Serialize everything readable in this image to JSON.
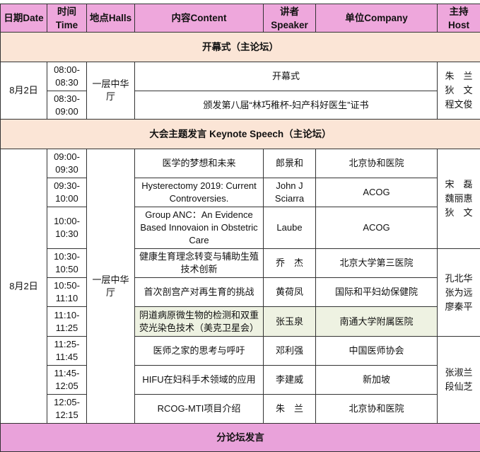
{
  "header": {
    "date": "日期Date",
    "time": "时间\nTime",
    "hall": "地点Halls",
    "content": "内容Content",
    "speaker": "讲者\nSpeaker",
    "company": "单位Company",
    "host": "主持\nHost"
  },
  "colors": {
    "header": "#eea7dc",
    "section": "#fbe5d6",
    "section_pink": "#e9a2da",
    "highlight": "#eef2e2"
  },
  "opening": {
    "title": "开幕式（主论坛）",
    "date": "8月2日",
    "hall": "一层中华厅",
    "host": "朱　兰\n狄　文\n程文俊",
    "rows": [
      {
        "time": "08:00-\n08:30",
        "content": "开幕式"
      },
      {
        "time": "08:30-\n09:00",
        "content": "颁发第八届“林巧稚杯-妇产科好医生”证书"
      }
    ]
  },
  "keynote": {
    "title": "大会主题发言 Keynote Speech（主论坛）",
    "date": "8月2日",
    "hall": "一层中华厅",
    "hosts": [
      "宋　磊\n魏丽惠\n狄　文",
      "孔北华\n张为远\n廖秦平",
      "张淑兰\n段仙芝"
    ],
    "rows": [
      {
        "time": "09:00-\n09:30",
        "content": "医学的梦想和未来",
        "speaker": "郎景和",
        "company": "北京协和医院"
      },
      {
        "time": "09:30-\n10:00",
        "content": "Hysterectomy 2019: Current Controversies.",
        "speaker": "John J Sciarra",
        "company": "ACOG"
      },
      {
        "time": "10:00-\n10:30",
        "content": "Group ANC：An Evidence Based Innovaion in Obstetric Care",
        "speaker": "Laube",
        "company": "ACOG"
      },
      {
        "time": "10:30-\n10:50",
        "content": "健康生育理念转变与辅助生殖技术创新",
        "speaker": "乔　杰",
        "company": "北京大学第三医院"
      },
      {
        "time": "10:50-\n11:10",
        "content": "首次剖宫产对再生育的挑战",
        "speaker": "黄荷凤",
        "company": "国际和平妇幼保健院"
      },
      {
        "time": "11:10-\n11:25",
        "content": "阴道病原微生物的检测和双重荧光染色技术（美克卫星会）",
        "speaker": "张玉泉",
        "company": "南通大学附属医院"
      },
      {
        "time": "11:25-\n11:45",
        "content": "医师之家的思考与呼吁",
        "speaker": "邓利强",
        "company": "中国医师协会"
      },
      {
        "time": "11:45-\n12:05",
        "content": "HIFU在妇科手术领域的应用",
        "speaker": "李建威",
        "company": "新加坡"
      },
      {
        "time": "12:05-\n12:15",
        "content": "RCOG-MTI项目介绍",
        "speaker": "朱　兰",
        "company": "北京协和医院"
      }
    ]
  },
  "branch": {
    "title": "分论坛发言"
  }
}
